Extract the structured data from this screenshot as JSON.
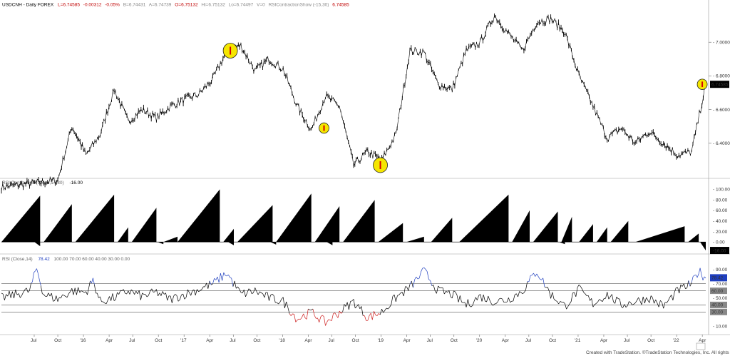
{
  "header": {
    "symbol": "USDCNH - Daily  FOREX",
    "L": "L=6.74585",
    "chg": "-0.00312",
    "pct": "-0.05%",
    "B": "B=6.74431",
    "A": "A=6.74739",
    "O": "O=6.75132",
    "H": "Hi=6.75132",
    "Lo": "Lo=6.74497",
    "V": "V=0",
    "study": "RSIContractionShow (-15,30)",
    "study_val": "6.74585"
  },
  "colors": {
    "price": "#000000",
    "rsi_line": "#000000",
    "rsi_high": "#1f3fbf",
    "rsi_low": "#cc1a1a",
    "highlight": "#f5e600",
    "marker": "#d40000",
    "last_price_box": "#000000"
  },
  "panes": {
    "contraction_header": "RSI Contraction (Close,14,30)",
    "contraction_val": "-16.00",
    "rsi_header": "RSI (Close,14)",
    "rsi_val": "78.42",
    "rsi_levels_text": "100.00  70.00  60.00  40.00  30.00  0.00"
  },
  "footer": {
    "credit": "Created with TradeStation. ©TradeStation Technologies, Inc. All rights reserved."
  },
  "chart_data": [
    {
      "type": "line",
      "name": "USDCNH Daily",
      "ylim": [
        6.2,
        7.2
      ],
      "ytick_labels": [
        "7.00000",
        "6.80000",
        "6.60000",
        "6.40000"
      ],
      "yticks": [
        7.0,
        6.8,
        6.6,
        6.4
      ],
      "last_value_label": "6.74585",
      "x": [
        0,
        4,
        8,
        10,
        11,
        12,
        14,
        16,
        18,
        20,
        22,
        24,
        26,
        28,
        30,
        32,
        34,
        36,
        38,
        40,
        42,
        44,
        46,
        48,
        50,
        52,
        54,
        56,
        58,
        60,
        62,
        64,
        66,
        68,
        70,
        72,
        74,
        76,
        78,
        80,
        82,
        84,
        86,
        88,
        90,
        92,
        94,
        96,
        98,
        100
      ],
      "y": [
        6.14,
        6.16,
        6.18,
        6.5,
        6.42,
        6.33,
        6.45,
        6.72,
        6.53,
        6.6,
        6.55,
        6.62,
        6.66,
        6.69,
        6.78,
        6.95,
        6.98,
        6.83,
        6.9,
        6.84,
        6.62,
        6.48,
        6.68,
        6.62,
        6.27,
        6.35,
        6.3,
        6.45,
        6.95,
        6.94,
        6.75,
        6.72,
        6.95,
        7.0,
        7.16,
        7.05,
        6.95,
        7.12,
        7.14,
        7.06,
        6.8,
        6.62,
        6.43,
        6.49,
        6.4,
        6.47,
        6.4,
        6.33,
        6.35,
        6.75
      ],
      "highlights": [
        {
          "x": 32.5,
          "y": 6.95
        },
        {
          "x": 45.8,
          "y": 6.49
        },
        {
          "x": 53.8,
          "y": 6.27
        },
        {
          "x": 99.5,
          "y": 6.75
        }
      ]
    },
    {
      "type": "area",
      "name": "RSI Contraction",
      "ylim": [
        -20,
        110
      ],
      "ytick_labels": [
        "100.00",
        "80.00",
        "60.00",
        "40.00",
        "20.00",
        "0.00"
      ],
      "yticks": [
        100,
        80,
        60,
        40,
        20,
        0
      ],
      "last_value_label": "-16.00",
      "ramps": [
        [
          0,
          5.5,
          88
        ],
        [
          6,
          10,
          72
        ],
        [
          10.5,
          16,
          90
        ],
        [
          16.5,
          18,
          28
        ],
        [
          18.5,
          22,
          65
        ],
        [
          23,
          25,
          10
        ],
        [
          25,
          31,
          100
        ],
        [
          31.5,
          33,
          25
        ],
        [
          33.5,
          38.5,
          70
        ],
        [
          39,
          44,
          92
        ],
        [
          44.5,
          48,
          68
        ],
        [
          48.5,
          53,
          80
        ],
        [
          53.5,
          57,
          36
        ],
        [
          57.5,
          60,
          10
        ],
        [
          61,
          64,
          46
        ],
        [
          65,
          72,
          90
        ],
        [
          72.5,
          75,
          60
        ],
        [
          75.5,
          79,
          58
        ],
        [
          79.5,
          81,
          48
        ],
        [
          82,
          84,
          34
        ],
        [
          84.5,
          86,
          28
        ],
        [
          86.5,
          89,
          40
        ],
        [
          90,
          97,
          30
        ],
        [
          97.5,
          99,
          16
        ]
      ],
      "dips": [
        [
          5.5,
          -8
        ],
        [
          23,
          -4
        ],
        [
          33,
          -6
        ],
        [
          39,
          -5
        ],
        [
          47,
          -6
        ],
        [
          80,
          -4
        ],
        [
          100,
          -16
        ]
      ]
    },
    {
      "type": "line",
      "name": "RSI (Close,14)",
      "ylim": [
        0,
        100
      ],
      "ytick_labels": [
        "90.00",
        "70.00",
        "50.00",
        "30.00",
        "10.00"
      ],
      "yticks": [
        90,
        70,
        50,
        30,
        10
      ],
      "levels": [
        70,
        60,
        40,
        30
      ],
      "level_labels": [
        "60.00",
        "40.00",
        "30.00"
      ],
      "last_value_label": "78.42",
      "x": [
        0,
        2,
        4,
        5,
        6,
        8,
        10,
        12,
        13,
        14,
        16,
        18,
        20,
        22,
        24,
        26,
        28,
        30,
        32,
        34,
        36,
        38,
        40,
        42,
        44,
        46,
        48,
        50,
        52,
        54,
        56,
        58,
        60,
        62,
        64,
        66,
        68,
        70,
        72,
        74,
        76,
        78,
        80,
        82,
        84,
        86,
        88,
        90,
        92,
        94,
        96,
        98,
        99,
        100
      ],
      "y": [
        50,
        55,
        60,
        92,
        55,
        48,
        60,
        58,
        75,
        45,
        50,
        60,
        52,
        58,
        48,
        55,
        62,
        70,
        85,
        55,
        60,
        50,
        45,
        20,
        30,
        15,
        30,
        45,
        22,
        30,
        50,
        65,
        88,
        60,
        55,
        40,
        52,
        45,
        48,
        60,
        88,
        55,
        38,
        62,
        42,
        55,
        40,
        45,
        50,
        38,
        60,
        70,
        88,
        78
      ]
    }
  ],
  "x_axis": {
    "labels": [
      "Jul",
      "Oct",
      "'16",
      "Apr",
      "Jul",
      "Oct",
      "'17",
      "Apr",
      "Jul",
      "Oct",
      "'18",
      "Apr",
      "Jul",
      "Oct",
      "'19",
      "Apr",
      "Jul",
      "Oct",
      "'20",
      "Apr",
      "Jul",
      "Oct",
      "'21",
      "Apr",
      "Jul",
      "Oct",
      "'22",
      "Apr"
    ],
    "positions": [
      3.7,
      7.1,
      10.8,
      14.5,
      17.9,
      21.6,
      25.3,
      29.0,
      32.4,
      35.8,
      39.5,
      43.2,
      46.6,
      50.0,
      53.7,
      57.4,
      60.8,
      64.2,
      67.9,
      71.6,
      75.0,
      78.4,
      82.1,
      85.8,
      89.2,
      92.6,
      96.3,
      100.0
    ]
  }
}
